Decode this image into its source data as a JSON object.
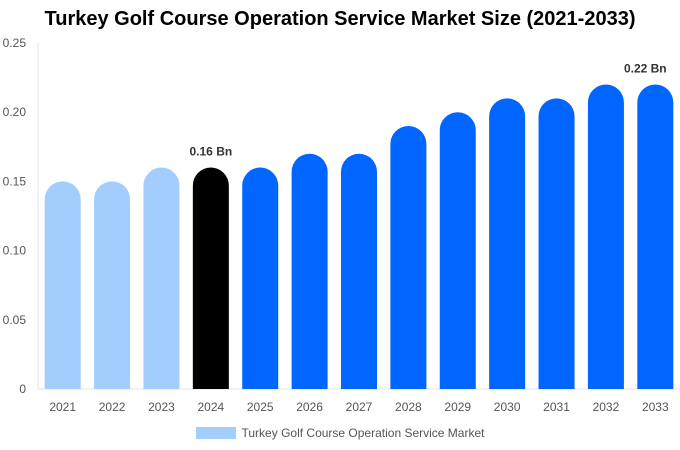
{
  "chart_data": {
    "type": "bar",
    "title": "Turkey Golf Course Operation Service Market Size (2021-2033)",
    "categories": [
      "2021",
      "2022",
      "2023",
      "2024",
      "2025",
      "2026",
      "2027",
      "2028",
      "2029",
      "2030",
      "2031",
      "2032",
      "2033"
    ],
    "series": [
      {
        "name": "Turkey Golf Course Operation Service Market",
        "values": [
          0.15,
          0.15,
          0.16,
          0.16,
          0.16,
          0.17,
          0.17,
          0.19,
          0.2,
          0.21,
          0.21,
          0.22,
          0.22
        ]
      }
    ],
    "bar_colors": [
      "#a3cdfc",
      "#a3cdfc",
      "#a3cdfc",
      "#000000",
      "#0066ff",
      "#0066ff",
      "#0066ff",
      "#0066ff",
      "#0066ff",
      "#0066ff",
      "#0066ff",
      "#0066ff",
      "#0066ff"
    ],
    "legend_color": "#a3cdfc",
    "data_labels": [
      {
        "category": "2024",
        "text": "0.16 Bn"
      },
      {
        "category": "2033",
        "text": "0.22 Bn"
      }
    ],
    "yticks": [
      "0",
      "0.05",
      "0.10",
      "0.15",
      "0.20",
      "0.25"
    ],
    "ylim": [
      0,
      0.25
    ],
    "xlabel": "",
    "ylabel": "",
    "grid": false,
    "legend_position": "bottom"
  }
}
